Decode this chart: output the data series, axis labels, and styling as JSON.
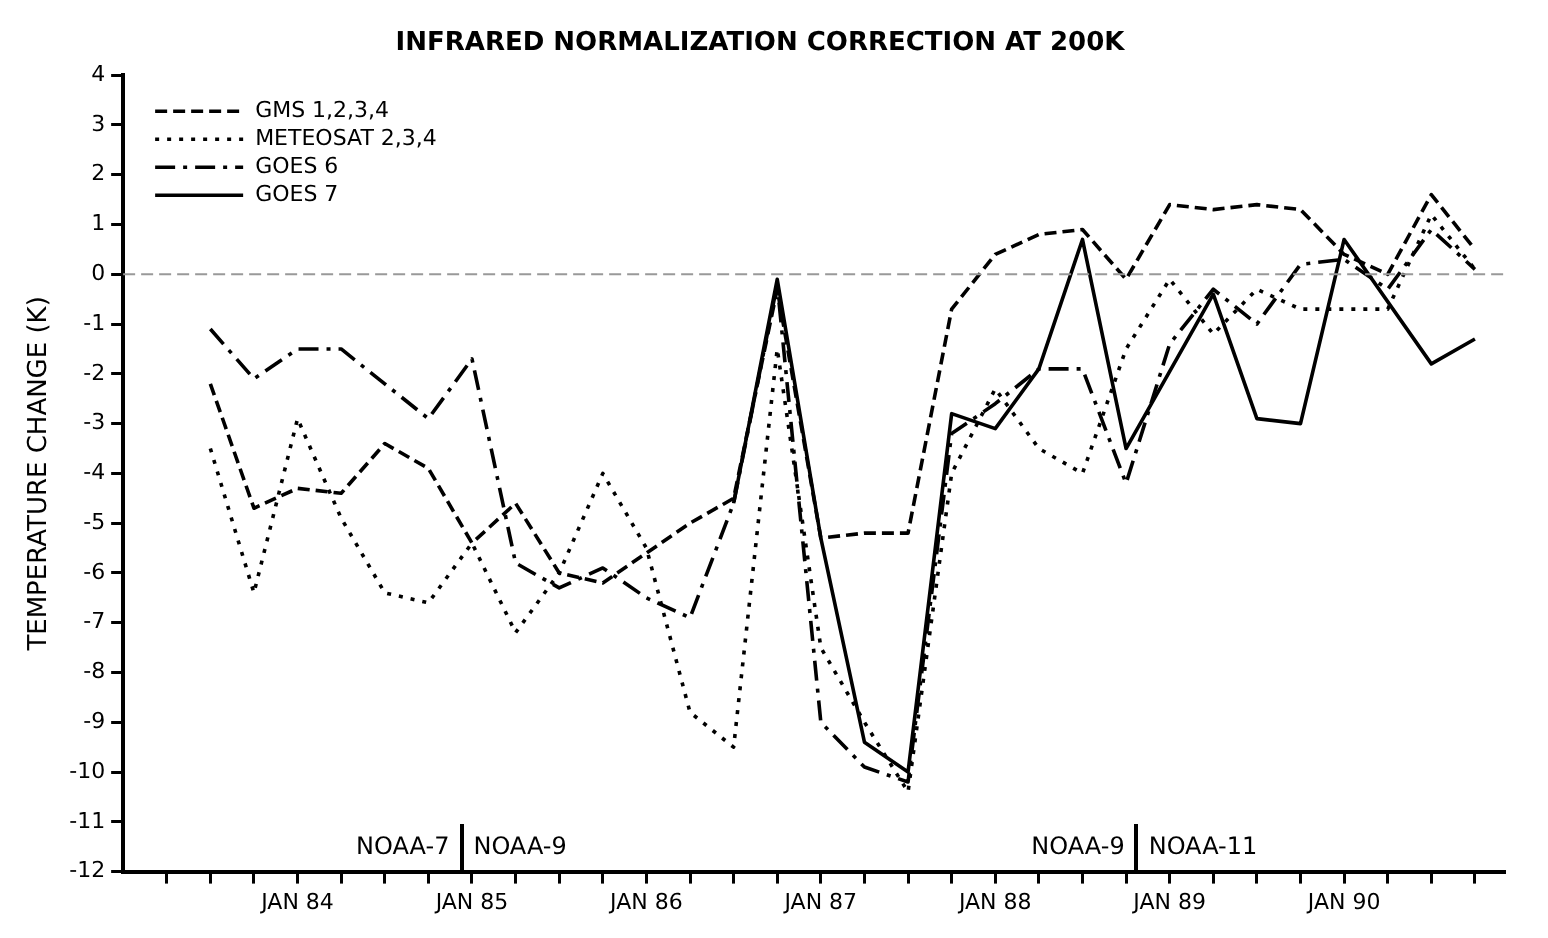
{
  "chart_data": {
    "type": "line",
    "title": "INFRARED NORMALIZATION CORRECTION AT 200K",
    "ylabel": "TEMPERATURE CHANGE (K)",
    "marker": "none",
    "grid": false,
    "legend": "top left",
    "xlim": [
      "1983-01",
      "1990-12"
    ],
    "ylim": [
      -12,
      4
    ],
    "yticks": [
      -12,
      -11,
      -10,
      -9,
      -8,
      -7,
      -6,
      -5,
      -4,
      -3,
      -2,
      -1,
      0,
      1,
      2,
      3,
      4
    ],
    "xticks": [
      {
        "value": "1983-04",
        "label": null
      },
      {
        "value": "1983-07",
        "label": null
      },
      {
        "value": "1983-10",
        "label": null
      },
      {
        "value": "1984-01",
        "label": "JAN 84"
      },
      {
        "value": "1984-04",
        "label": null
      },
      {
        "value": "1984-07",
        "label": null
      },
      {
        "value": "1984-10",
        "label": null
      },
      {
        "value": "1985-01",
        "label": "JAN 85"
      },
      {
        "value": "1985-04",
        "label": null
      },
      {
        "value": "1985-07",
        "label": null
      },
      {
        "value": "1985-10",
        "label": null
      },
      {
        "value": "1986-01",
        "label": "JAN 86"
      },
      {
        "value": "1986-04",
        "label": null
      },
      {
        "value": "1986-07",
        "label": null
      },
      {
        "value": "1986-10",
        "label": null
      },
      {
        "value": "1987-01",
        "label": "JAN 87"
      },
      {
        "value": "1987-04",
        "label": null
      },
      {
        "value": "1987-07",
        "label": null
      },
      {
        "value": "1987-10",
        "label": null
      },
      {
        "value": "1988-01",
        "label": "JAN 88"
      },
      {
        "value": "1988-04",
        "label": null
      },
      {
        "value": "1988-07",
        "label": null
      },
      {
        "value": "1988-10",
        "label": null
      },
      {
        "value": "1989-01",
        "label": "JAN 89"
      },
      {
        "value": "1989-04",
        "label": null
      },
      {
        "value": "1989-07",
        "label": null
      },
      {
        "value": "1989-10",
        "label": null
      },
      {
        "value": "1990-01",
        "label": "JAN 90"
      },
      {
        "value": "1990-04",
        "label": null
      },
      {
        "value": "1990-07",
        "label": null
      },
      {
        "value": "1990-10",
        "label": null
      }
    ],
    "x": [
      "1983-07",
      "1983-10",
      "1984-01",
      "1984-04",
      "1984-07",
      "1984-10",
      "1985-01",
      "1985-04",
      "1985-07",
      "1985-10",
      "1986-01",
      "1986-04",
      "1986-07",
      "1986-10",
      "1987-01",
      "1987-04",
      "1987-07",
      "1987-10",
      "1988-01",
      "1988-04",
      "1988-07",
      "1988-10",
      "1989-01",
      "1989-04",
      "1989-07",
      "1989-10",
      "1990-01",
      "1990-04",
      "1990-07",
      "1990-10"
    ],
    "series": [
      {
        "name": "GMS 1,2,3,4",
        "color": "#000000",
        "line_style": "dashed",
        "values": [
          -2.2,
          -4.7,
          -4.3,
          -4.4,
          -3.4,
          -3.9,
          -5.4,
          -4.6,
          -6.0,
          -6.2,
          -5.6,
          -5.0,
          -4.5,
          -0.3,
          -5.3,
          -5.2,
          -5.2,
          -0.7,
          0.4,
          0.8,
          0.9,
          -0.1,
          1.4,
          1.3,
          1.4,
          1.3,
          0.4,
          0.0,
          1.6,
          0.5
        ]
      },
      {
        "name": "METEOSAT 2,3,4",
        "color": "#000000",
        "line_style": "dotted",
        "values": [
          -3.5,
          -6.4,
          -2.9,
          -4.9,
          -6.4,
          -6.6,
          -5.4,
          -7.2,
          -6.0,
          -4.0,
          -5.5,
          -8.8,
          -9.5,
          -1.5,
          -7.5,
          -9.0,
          -10.4,
          -4.0,
          -2.3,
          -3.5,
          -4.0,
          -1.5,
          -0.1,
          -1.2,
          -0.3,
          -0.7,
          -0.7,
          -0.7,
          1.2,
          0.1
        ]
      },
      {
        "name": "GOES 6",
        "color": "#000000",
        "line_style": "dashdot",
        "values": [
          -1.1,
          -2.1,
          -1.5,
          -1.5,
          -2.2,
          -2.9,
          -1.7,
          -5.8,
          -6.3,
          -5.9,
          -6.5,
          -6.9,
          -4.6,
          -0.2,
          -9.0,
          -9.9,
          -10.2,
          -3.2,
          -2.6,
          -1.9,
          -1.9,
          -4.2,
          -1.4,
          -0.3,
          -1.0,
          0.2,
          0.3,
          -0.3,
          0.9,
          0.1
        ]
      },
      {
        "name": "GOES 7",
        "color": "#000000",
        "line_style": "solid",
        "x": [
          "1986-07",
          "1986-10",
          "1987-01",
          "1987-04",
          "1987-07",
          "1987-10",
          "1988-01",
          "1988-04",
          "1988-07",
          "1988-10",
          "1989-04",
          "1989-07",
          "1989-10",
          "1990-01",
          "1990-07",
          "1990-10"
        ],
        "values": [
          -4.6,
          -0.1,
          -5.3,
          -9.4,
          -10.0,
          -2.8,
          -3.1,
          -1.9,
          0.7,
          -3.5,
          -0.4,
          -2.9,
          -3.0,
          0.7,
          -1.8,
          -1.3
        ]
      }
    ],
    "ref_lines": [
      {
        "axis": "y",
        "value": 0,
        "color": "#999999",
        "line_style": "dashed"
      }
    ],
    "annotations": [
      "NOAA-7",
      "NOAA-9",
      "NOAA-9",
      "NOAA-11"
    ]
  }
}
